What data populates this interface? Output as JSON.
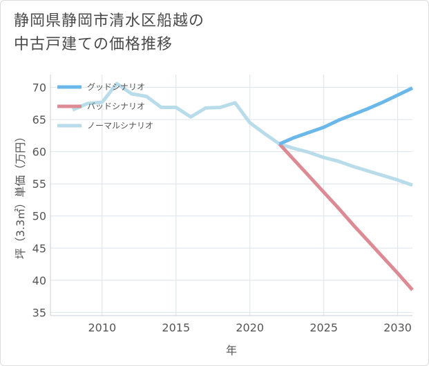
{
  "title": "静岡県静岡市清水区船越の\n中古戸建ての価格推移",
  "chart_data": {
    "type": "line",
    "title": "静岡県静岡市清水区船越の中古戸建ての価格推移",
    "xlabel": "年",
    "ylabel": "坪（3.3㎡）単価（万円）",
    "xlim": [
      2006.5,
      2031
    ],
    "ylim": [
      34.5,
      72
    ],
    "xticks": [
      2010,
      2015,
      2020,
      2025,
      2030
    ],
    "yticks": [
      35,
      40,
      45,
      50,
      55,
      60,
      65,
      70
    ],
    "grid": true,
    "legend_position": "top-left",
    "series": [
      {
        "name": "グッドシナリオ",
        "color": "#6ab8ea",
        "x": [
          2022,
          2023,
          2024,
          2025,
          2026,
          2027,
          2028,
          2029,
          2030,
          2031
        ],
        "y": [
          61.2,
          62.2,
          63.0,
          63.8,
          64.9,
          65.8,
          66.7,
          67.7,
          68.8,
          69.9
        ]
      },
      {
        "name": "バッドシナリオ",
        "color": "#dc8b94",
        "x": [
          2022,
          2023,
          2024,
          2025,
          2026,
          2027,
          2028,
          2029,
          2030,
          2031
        ],
        "y": [
          61.2,
          58.7,
          56.2,
          53.7,
          51.2,
          48.6,
          46.1,
          43.6,
          41.1,
          38.5
        ]
      },
      {
        "name": "ノーマルシナリオ",
        "color": "#b8dcea",
        "x": [
          2008,
          2009,
          2010,
          2011,
          2012,
          2013,
          2014,
          2015,
          2016,
          2017,
          2018,
          2019,
          2020,
          2021,
          2022,
          2023,
          2024,
          2025,
          2026,
          2027,
          2028,
          2029,
          2030,
          2031
        ],
        "y": [
          66.5,
          67.5,
          67.7,
          70.6,
          69.0,
          68.6,
          66.9,
          66.9,
          65.4,
          66.8,
          66.9,
          67.6,
          64.5,
          62.8,
          61.2,
          60.5,
          59.9,
          59.1,
          58.5,
          57.7,
          57.0,
          56.3,
          55.6,
          54.8
        ]
      }
    ]
  }
}
